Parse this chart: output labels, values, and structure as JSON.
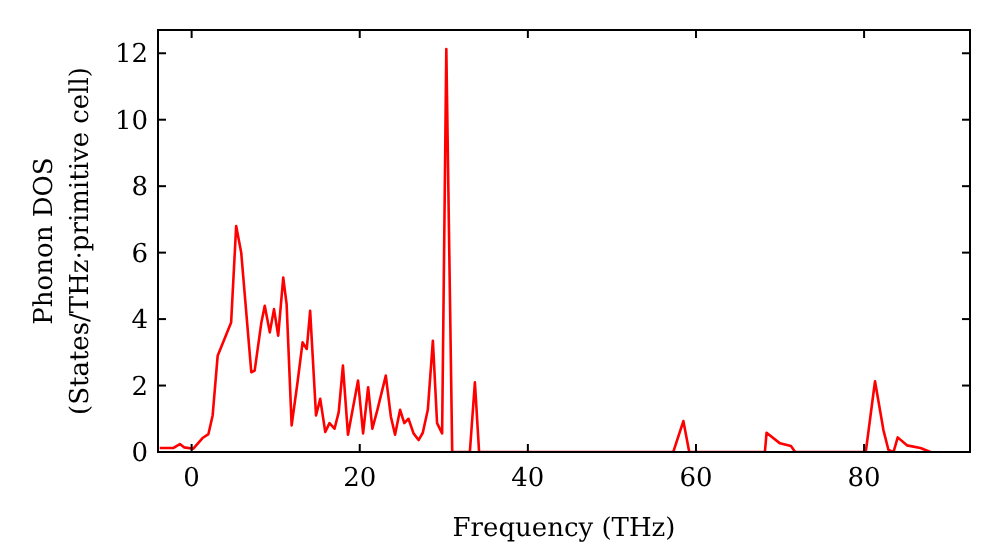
{
  "chart_data": {
    "type": "line",
    "xlabel": "Frequency (THz)",
    "ylabel": "Phonon DOS\n(States/THz·primitive cell)",
    "xlim": [
      -4,
      92.6
    ],
    "ylim": [
      0,
      12.7
    ],
    "xticks": [
      0,
      20,
      40,
      60,
      80
    ],
    "yticks": [
      0,
      2,
      4,
      6,
      8,
      10,
      12
    ],
    "grid": false,
    "series": [
      {
        "color": "#ff0000",
        "x": [
          -3.8,
          -2.2,
          -1.4,
          -0.9,
          0.2,
          1.3,
          2.0,
          2.5,
          3.1,
          4.7,
          5.3,
          5.9,
          7.1,
          7.5,
          8.3,
          8.7,
          9.3,
          9.8,
          10.3,
          10.9,
          11.3,
          11.9,
          12.6,
          13.2,
          13.7,
          14.1,
          14.8,
          15.3,
          15.9,
          16.4,
          17.0,
          17.5,
          18.0,
          18.6,
          19.8,
          20.4,
          21.0,
          21.5,
          22.1,
          23.1,
          23.7,
          24.2,
          24.8,
          25.3,
          25.8,
          26.4,
          27.0,
          27.5,
          28.1,
          28.7,
          29.2,
          29.8,
          30.3,
          31.0,
          33.1,
          33.7,
          34.2,
          57.3,
          58.5,
          59.2,
          68.2,
          68.4,
          70.0,
          71.3,
          71.8,
          80.2,
          81.3,
          82.3,
          82.9,
          83.5,
          84.0,
          85.1,
          86.7,
          87.9
        ],
        "values": [
          0.12,
          0.12,
          0.24,
          0.14,
          0.1,
          0.42,
          0.54,
          1.1,
          2.9,
          3.9,
          6.8,
          6.0,
          2.4,
          2.45,
          3.9,
          4.4,
          3.6,
          4.3,
          3.5,
          5.25,
          4.45,
          0.8,
          2.1,
          3.3,
          3.1,
          4.25,
          1.1,
          1.6,
          0.6,
          0.87,
          0.7,
          1.2,
          2.6,
          0.52,
          2.15,
          0.56,
          1.95,
          0.7,
          1.27,
          2.3,
          1.07,
          0.52,
          1.27,
          0.87,
          1.0,
          0.56,
          0.36,
          0.58,
          1.27,
          3.35,
          0.87,
          0.56,
          12.13,
          0,
          0,
          2.1,
          0,
          0,
          0.93,
          0,
          0,
          0.58,
          0.26,
          0.18,
          0,
          0,
          2.13,
          0.66,
          0.06,
          0,
          0.44,
          0.2,
          0.12,
          0
        ]
      }
    ]
  }
}
